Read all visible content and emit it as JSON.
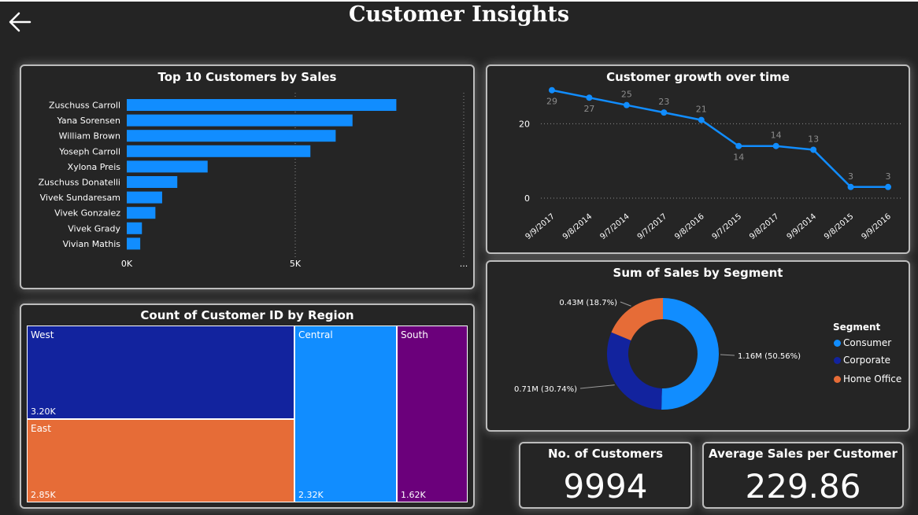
{
  "header": {
    "title": "Customer Insights"
  },
  "top_customers": {
    "title": "Top 10 Customers by Sales"
  },
  "growth": {
    "title": "Customer growth over time"
  },
  "region": {
    "title": "Count of Customer ID by Region",
    "cells": [
      {
        "name": "West",
        "value": "3.20K",
        "color": "#12239e"
      },
      {
        "name": "East",
        "value": "2.85K",
        "color": "#e66c37"
      },
      {
        "name": "Central",
        "value": "2.32K",
        "color": "#118dff"
      },
      {
        "name": "South",
        "value": "1.62K",
        "color": "#6b007b"
      }
    ]
  },
  "segment": {
    "title": "Sum of Sales by Segment",
    "legend_title": "Segment"
  },
  "kpis": {
    "customers_label": "No. of Customers",
    "customers_value": "9994",
    "avg_label": "Average Sales per Customer",
    "avg_value": "229.86"
  },
  "colors": {
    "accent": "#118dff",
    "navy": "#12239e",
    "orange": "#e66c37",
    "purple": "#6b007b"
  },
  "icons": {
    "back": "arrow-left-icon"
  },
  "chart_data": [
    {
      "type": "bar",
      "orientation": "horizontal",
      "title": "Top 10 Customers by Sales",
      "categories": [
        "Zuschuss Carroll",
        "Yana Sorensen",
        "William Brown",
        "Yoseph Carroll",
        "Xylona Preis",
        "Zuschuss Donatelli",
        "Vivek Sundaresam",
        "Vivek Gonzalez",
        "Vivek Grady",
        "Vivian Mathis"
      ],
      "values": [
        8000,
        6700,
        6200,
        5450,
        2400,
        1500,
        1050,
        850,
        450,
        400
      ],
      "xticks": [
        "0K",
        "5K",
        "..."
      ],
      "xlim": [
        0,
        10000
      ],
      "color": "#118dff"
    },
    {
      "type": "line",
      "title": "Customer growth over time",
      "x": [
        "9/9/2017",
        "9/8/2014",
        "9/7/2014",
        "9/7/2017",
        "9/8/2016",
        "9/7/2015",
        "9/8/2017",
        "9/9/2014",
        "9/8/2015",
        "9/9/2016"
      ],
      "values": [
        29,
        27,
        25,
        23,
        21,
        14,
        14,
        13,
        3,
        3
      ],
      "yticks": [
        0,
        20
      ],
      "ylim": [
        0,
        30
      ],
      "color": "#118dff"
    },
    {
      "type": "pie",
      "title": "Sum of Sales by Segment",
      "donut": true,
      "slices": [
        {
          "name": "Consumer",
          "value": 1.16,
          "label": "1.16M (50.56%)",
          "color": "#118dff"
        },
        {
          "name": "Corporate",
          "value": 0.71,
          "label": "0.71M (30.74%)",
          "color": "#12239e"
        },
        {
          "name": "Home Office",
          "value": 0.43,
          "label": "0.43M (18.7%)",
          "color": "#e66c37"
        }
      ],
      "legend_position": "right"
    },
    {
      "type": "table",
      "title": "Count of Customer ID by Region",
      "categories": [
        "West",
        "East",
        "Central",
        "South"
      ],
      "values": [
        3200,
        2850,
        2320,
        1620
      ]
    }
  ]
}
